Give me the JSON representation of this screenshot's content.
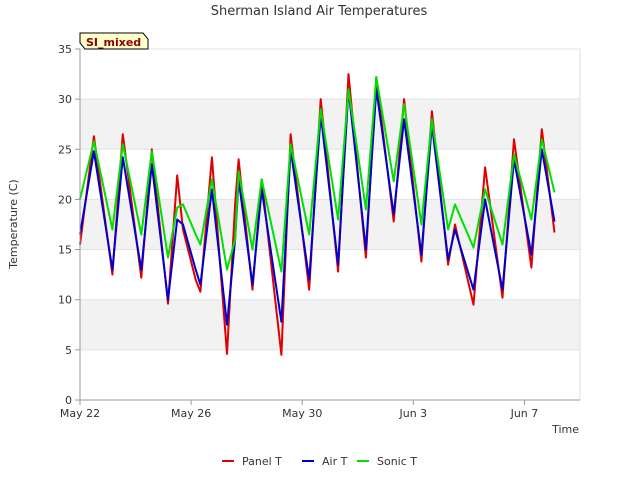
{
  "chart_data": {
    "type": "line",
    "title": "Sherman Island Air Temperatures",
    "xlabel": "Time",
    "ylabel": "Temperature (C)",
    "badge": "SI_mixed",
    "ylim": [
      0,
      35
    ],
    "yticks": [
      0,
      5,
      10,
      15,
      20,
      25,
      30,
      35
    ],
    "xlim": [
      "2024-05-22",
      "2024-06-09"
    ],
    "xticks": [
      {
        "date": "2024-05-22",
        "label": "May 22"
      },
      {
        "date": "2024-05-26",
        "label": "May 26"
      },
      {
        "date": "2024-05-30",
        "label": "May 30"
      },
      {
        "date": "2024-06-03",
        "label": "Jun 3"
      },
      {
        "date": "2024-06-07",
        "label": "Jun 7"
      }
    ],
    "grid": true,
    "legend_position": "bottom",
    "series": [
      {
        "name": "Panel T",
        "color": "#e00000",
        "points": [
          [
            "2024-05-22",
            15.5
          ],
          [
            "2024-05-22T12:00",
            26.3
          ],
          [
            "2024-05-23T04:00",
            12.5
          ],
          [
            "2024-05-23T13:00",
            26.5
          ],
          [
            "2024-05-24T05:00",
            12.2
          ],
          [
            "2024-05-24T14:00",
            25.0
          ],
          [
            "2024-05-25T04:00",
            9.6
          ],
          [
            "2024-05-25T12:00",
            22.4
          ],
          [
            "2024-05-25T17:00",
            17.0
          ],
          [
            "2024-05-26T04:00",
            12.0
          ],
          [
            "2024-05-26T08:00",
            10.8
          ],
          [
            "2024-05-26T18:00",
            24.2
          ],
          [
            "2024-05-27T07:00",
            4.6
          ],
          [
            "2024-05-27T14:00",
            19.5
          ],
          [
            "2024-05-27T17:00",
            24.0
          ],
          [
            "2024-05-28T05:00",
            11.0
          ],
          [
            "2024-05-28T13:00",
            22.0
          ],
          [
            "2024-05-29T06:00",
            4.5
          ],
          [
            "2024-05-29T14:00",
            26.5
          ],
          [
            "2024-05-30T06:00",
            11.0
          ],
          [
            "2024-05-30T16:00",
            30.0
          ],
          [
            "2024-05-31T07:00",
            12.8
          ],
          [
            "2024-05-31T16:00",
            32.5
          ],
          [
            "2024-06-01T07:00",
            14.2
          ],
          [
            "2024-06-01T16:00",
            32.2
          ],
          [
            "2024-06-02T07:00",
            17.8
          ],
          [
            "2024-06-02T16:00",
            30.0
          ],
          [
            "2024-06-03T07:00",
            13.8
          ],
          [
            "2024-06-03T16:00",
            28.8
          ],
          [
            "2024-06-04T06:00",
            13.5
          ],
          [
            "2024-06-04T12:00",
            17.5
          ],
          [
            "2024-06-05T04:00",
            9.5
          ],
          [
            "2024-06-05T14:00",
            23.2
          ],
          [
            "2024-06-06T05:00",
            10.2
          ],
          [
            "2024-06-06T15:00",
            26.0
          ],
          [
            "2024-06-07T06:00",
            13.2
          ],
          [
            "2024-06-07T15:00",
            27.0
          ],
          [
            "2024-06-08T02:00",
            16.7
          ]
        ]
      },
      {
        "name": "Air T",
        "color": "#0000cc",
        "points": [
          [
            "2024-05-22",
            16.5
          ],
          [
            "2024-05-22T12:00",
            24.8
          ],
          [
            "2024-05-23T04:00",
            13.0
          ],
          [
            "2024-05-23T13:00",
            24.2
          ],
          [
            "2024-05-24T05:00",
            13.0
          ],
          [
            "2024-05-24T14:00",
            23.5
          ],
          [
            "2024-05-25T04:00",
            10.0
          ],
          [
            "2024-05-25T12:00",
            18.0
          ],
          [
            "2024-05-25T17:00",
            17.5
          ],
          [
            "2024-05-26T04:00",
            13.0
          ],
          [
            "2024-05-26T08:00",
            11.5
          ],
          [
            "2024-05-26T18:00",
            21.0
          ],
          [
            "2024-05-27T07:00",
            7.5
          ],
          [
            "2024-05-27T14:00",
            16.0
          ],
          [
            "2024-05-27T17:00",
            22.0
          ],
          [
            "2024-05-28T05:00",
            11.5
          ],
          [
            "2024-05-28T13:00",
            21.0
          ],
          [
            "2024-05-29T06:00",
            7.8
          ],
          [
            "2024-05-29T14:00",
            25.0
          ],
          [
            "2024-05-30T06:00",
            12.0
          ],
          [
            "2024-05-30T16:00",
            28.5
          ],
          [
            "2024-05-31T07:00",
            13.5
          ],
          [
            "2024-05-31T16:00",
            31.0
          ],
          [
            "2024-06-01T07:00",
            15.0
          ],
          [
            "2024-06-01T16:00",
            31.0
          ],
          [
            "2024-06-02T07:00",
            18.5
          ],
          [
            "2024-06-02T16:00",
            28.0
          ],
          [
            "2024-06-03T07:00",
            14.5
          ],
          [
            "2024-06-03T16:00",
            27.5
          ],
          [
            "2024-06-04T06:00",
            14.0
          ],
          [
            "2024-06-04T12:00",
            17.0
          ],
          [
            "2024-06-05T04:00",
            11.0
          ],
          [
            "2024-06-05T14:00",
            20.0
          ],
          [
            "2024-06-06T05:00",
            11.0
          ],
          [
            "2024-06-06T15:00",
            24.0
          ],
          [
            "2024-06-07T06:00",
            14.5
          ],
          [
            "2024-06-07T15:00",
            25.0
          ],
          [
            "2024-06-08T02:00",
            17.8
          ]
        ]
      },
      {
        "name": "Sonic T",
        "color": "#00e000",
        "points": [
          [
            "2024-05-22",
            20.0
          ],
          [
            "2024-05-22T12:00",
            25.8
          ],
          [
            "2024-05-23T04:00",
            17.0
          ],
          [
            "2024-05-23T13:00",
            25.5
          ],
          [
            "2024-05-24T05:00",
            16.5
          ],
          [
            "2024-05-24T14:00",
            24.8
          ],
          [
            "2024-05-25T04:00",
            14.2
          ],
          [
            "2024-05-25T12:00",
            19.2
          ],
          [
            "2024-05-25T17:00",
            19.5
          ],
          [
            "2024-05-26T04:00",
            16.5
          ],
          [
            "2024-05-26T08:00",
            15.5
          ],
          [
            "2024-05-26T18:00",
            22.0
          ],
          [
            "2024-05-27T07:00",
            13.0
          ],
          [
            "2024-05-27T14:00",
            16.0
          ],
          [
            "2024-05-27T17:00",
            22.8
          ],
          [
            "2024-05-28T05:00",
            15.0
          ],
          [
            "2024-05-28T13:00",
            22.0
          ],
          [
            "2024-05-29T06:00",
            12.8
          ],
          [
            "2024-05-29T14:00",
            25.5
          ],
          [
            "2024-05-30T06:00",
            16.5
          ],
          [
            "2024-05-30T16:00",
            29.0
          ],
          [
            "2024-05-31T07:00",
            18.0
          ],
          [
            "2024-05-31T16:00",
            31.0
          ],
          [
            "2024-06-01T07:00",
            19.0
          ],
          [
            "2024-06-01T16:00",
            32.2
          ],
          [
            "2024-06-02T07:00",
            21.8
          ],
          [
            "2024-06-02T16:00",
            29.5
          ],
          [
            "2024-06-03T07:00",
            17.5
          ],
          [
            "2024-06-03T16:00",
            28.0
          ],
          [
            "2024-06-04T06:00",
            17.0
          ],
          [
            "2024-06-04T12:00",
            19.5
          ],
          [
            "2024-06-05T04:00",
            15.2
          ],
          [
            "2024-06-05T14:00",
            21.0
          ],
          [
            "2024-06-06T05:00",
            15.5
          ],
          [
            "2024-06-06T15:00",
            24.5
          ],
          [
            "2024-06-07T06:00",
            18.0
          ],
          [
            "2024-06-07T15:00",
            26.0
          ],
          [
            "2024-06-08T02:00",
            20.7
          ]
        ]
      }
    ]
  }
}
